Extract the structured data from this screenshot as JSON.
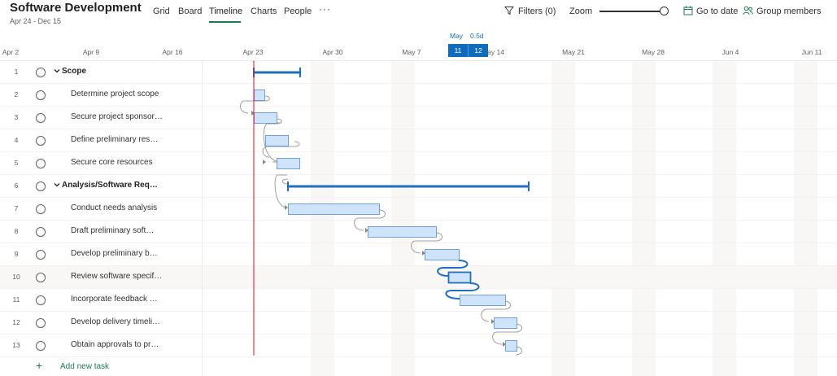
{
  "header": {
    "title": "Software Development",
    "subtitle": "Apr 24 - Dec 15",
    "tabs": [
      {
        "label": "Grid",
        "active": false
      },
      {
        "label": "Board",
        "active": false
      },
      {
        "label": "Timeline",
        "active": true
      },
      {
        "label": "Charts",
        "active": false
      },
      {
        "label": "People",
        "active": false
      }
    ],
    "more_label": "···",
    "filters_label": "Filters (0)",
    "zoom_label": "Zoom",
    "zoom_level": 0.92,
    "goto_label": "Go to date",
    "group_label": "Group members"
  },
  "axis": {
    "dates": [
      "Apr 2",
      "Apr 9",
      "Apr 16",
      "Apr 23",
      "Apr 30",
      "May 7",
      "May 14",
      "May 21",
      "May 28",
      "Jun 4",
      "Jun 11"
    ],
    "selection_month": "May",
    "selection_duration": "0.5d",
    "selection_days": [
      "11",
      "12"
    ]
  },
  "tasks": [
    {
      "num": "1",
      "name": "Scope",
      "summary": true
    },
    {
      "num": "2",
      "name": "Determine project scope",
      "summary": false
    },
    {
      "num": "3",
      "name": "Secure project sponsor…",
      "summary": false
    },
    {
      "num": "4",
      "name": "Define preliminary res…",
      "summary": false
    },
    {
      "num": "5",
      "name": "Secure core resources",
      "summary": false
    },
    {
      "num": "6",
      "name": "Analysis/Software Req…",
      "summary": true
    },
    {
      "num": "7",
      "name": "Conduct needs analysis",
      "summary": false
    },
    {
      "num": "8",
      "name": "Draft preliminary soft…",
      "summary": false
    },
    {
      "num": "9",
      "name": "Develop preliminary b…",
      "summary": false
    },
    {
      "num": "10",
      "name": "Review software specif…",
      "summary": false
    },
    {
      "num": "11",
      "name": "Incorporate feedback …",
      "summary": false
    },
    {
      "num": "12",
      "name": "Develop delivery timeli…",
      "summary": false
    },
    {
      "num": "13",
      "name": "Obtain approvals to pr…",
      "summary": false
    }
  ],
  "add_task_label": "Add new task",
  "colors": {
    "accent_green": "#1e7a52",
    "bar_fill": "#cfe4fa",
    "bar_border": "#4f8fd0",
    "summary_bar": "#1f6fc0",
    "today_line": "#e81123",
    "weekend_shade": "#f8f7f6"
  }
}
